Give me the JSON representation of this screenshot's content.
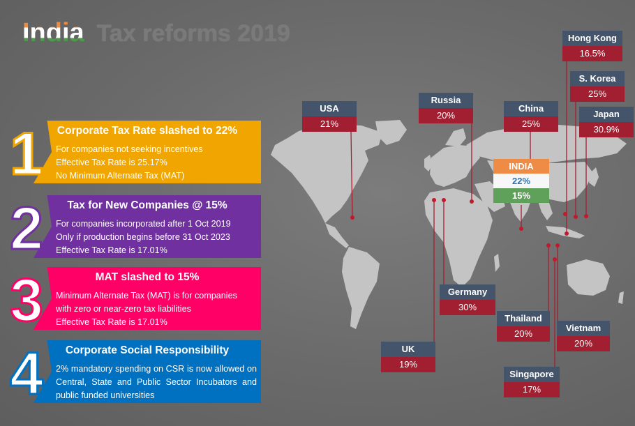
{
  "title": {
    "main": "India",
    "sub": "Tax reforms 2019"
  },
  "reforms": [
    {
      "number": "1",
      "heading": "Corporate Tax Rate slashed to 22%",
      "lines": [
        "For companies not seeking incentives",
        "Effective Tax Rate is 25.17%",
        "No Minimum Alternate Tax (MAT)"
      ],
      "color": "#f0a500"
    },
    {
      "number": "2",
      "heading": "Tax for New Companies @ 15%",
      "lines": [
        "For companies incorporated after 1 Oct 2019",
        "Only if production begins before 31 Oct 2023",
        "Effective Tax Rate is 17.01%"
      ],
      "color": "#7030a0"
    },
    {
      "number": "3",
      "heading": "MAT slashed to 15%",
      "lines": [
        "Minimum Alternate Tax (MAT) is for companies",
        "with zero or near-zero tax liabilities",
        "Effective Tax Rate is 17.01%"
      ],
      "color": "#ff0066"
    },
    {
      "number": "4",
      "heading": "Corporate Social Responsibility",
      "lines": [
        "2% mandatory spending on CSR is now allowed on Central, State and Public Sector Incubators and public funded universities"
      ],
      "color": "#0070c0"
    }
  ],
  "countries": [
    {
      "name": "USA",
      "rate": "21%"
    },
    {
      "name": "Russia",
      "rate": "20%"
    },
    {
      "name": "China",
      "rate": "25%"
    },
    {
      "name": "Hong Kong",
      "rate": "16.5%"
    },
    {
      "name": "S. Korea",
      "rate": "25%"
    },
    {
      "name": "Japan",
      "rate": "30.9%"
    },
    {
      "name": "Germany",
      "rate": "30%"
    },
    {
      "name": "UK",
      "rate": "19%"
    },
    {
      "name": "Thailand",
      "rate": "20%"
    },
    {
      "name": "Vietnam",
      "rate": "20%"
    },
    {
      "name": "Singapore",
      "rate": "17%"
    }
  ],
  "india": {
    "name": "INDIA",
    "old_rate": "22%",
    "new_rate": "15%"
  },
  "colors": {
    "label_header": "#44546a",
    "label_value": "#a11f31",
    "leader_line": "#a11f31",
    "map_land": "#c4c4c4"
  }
}
